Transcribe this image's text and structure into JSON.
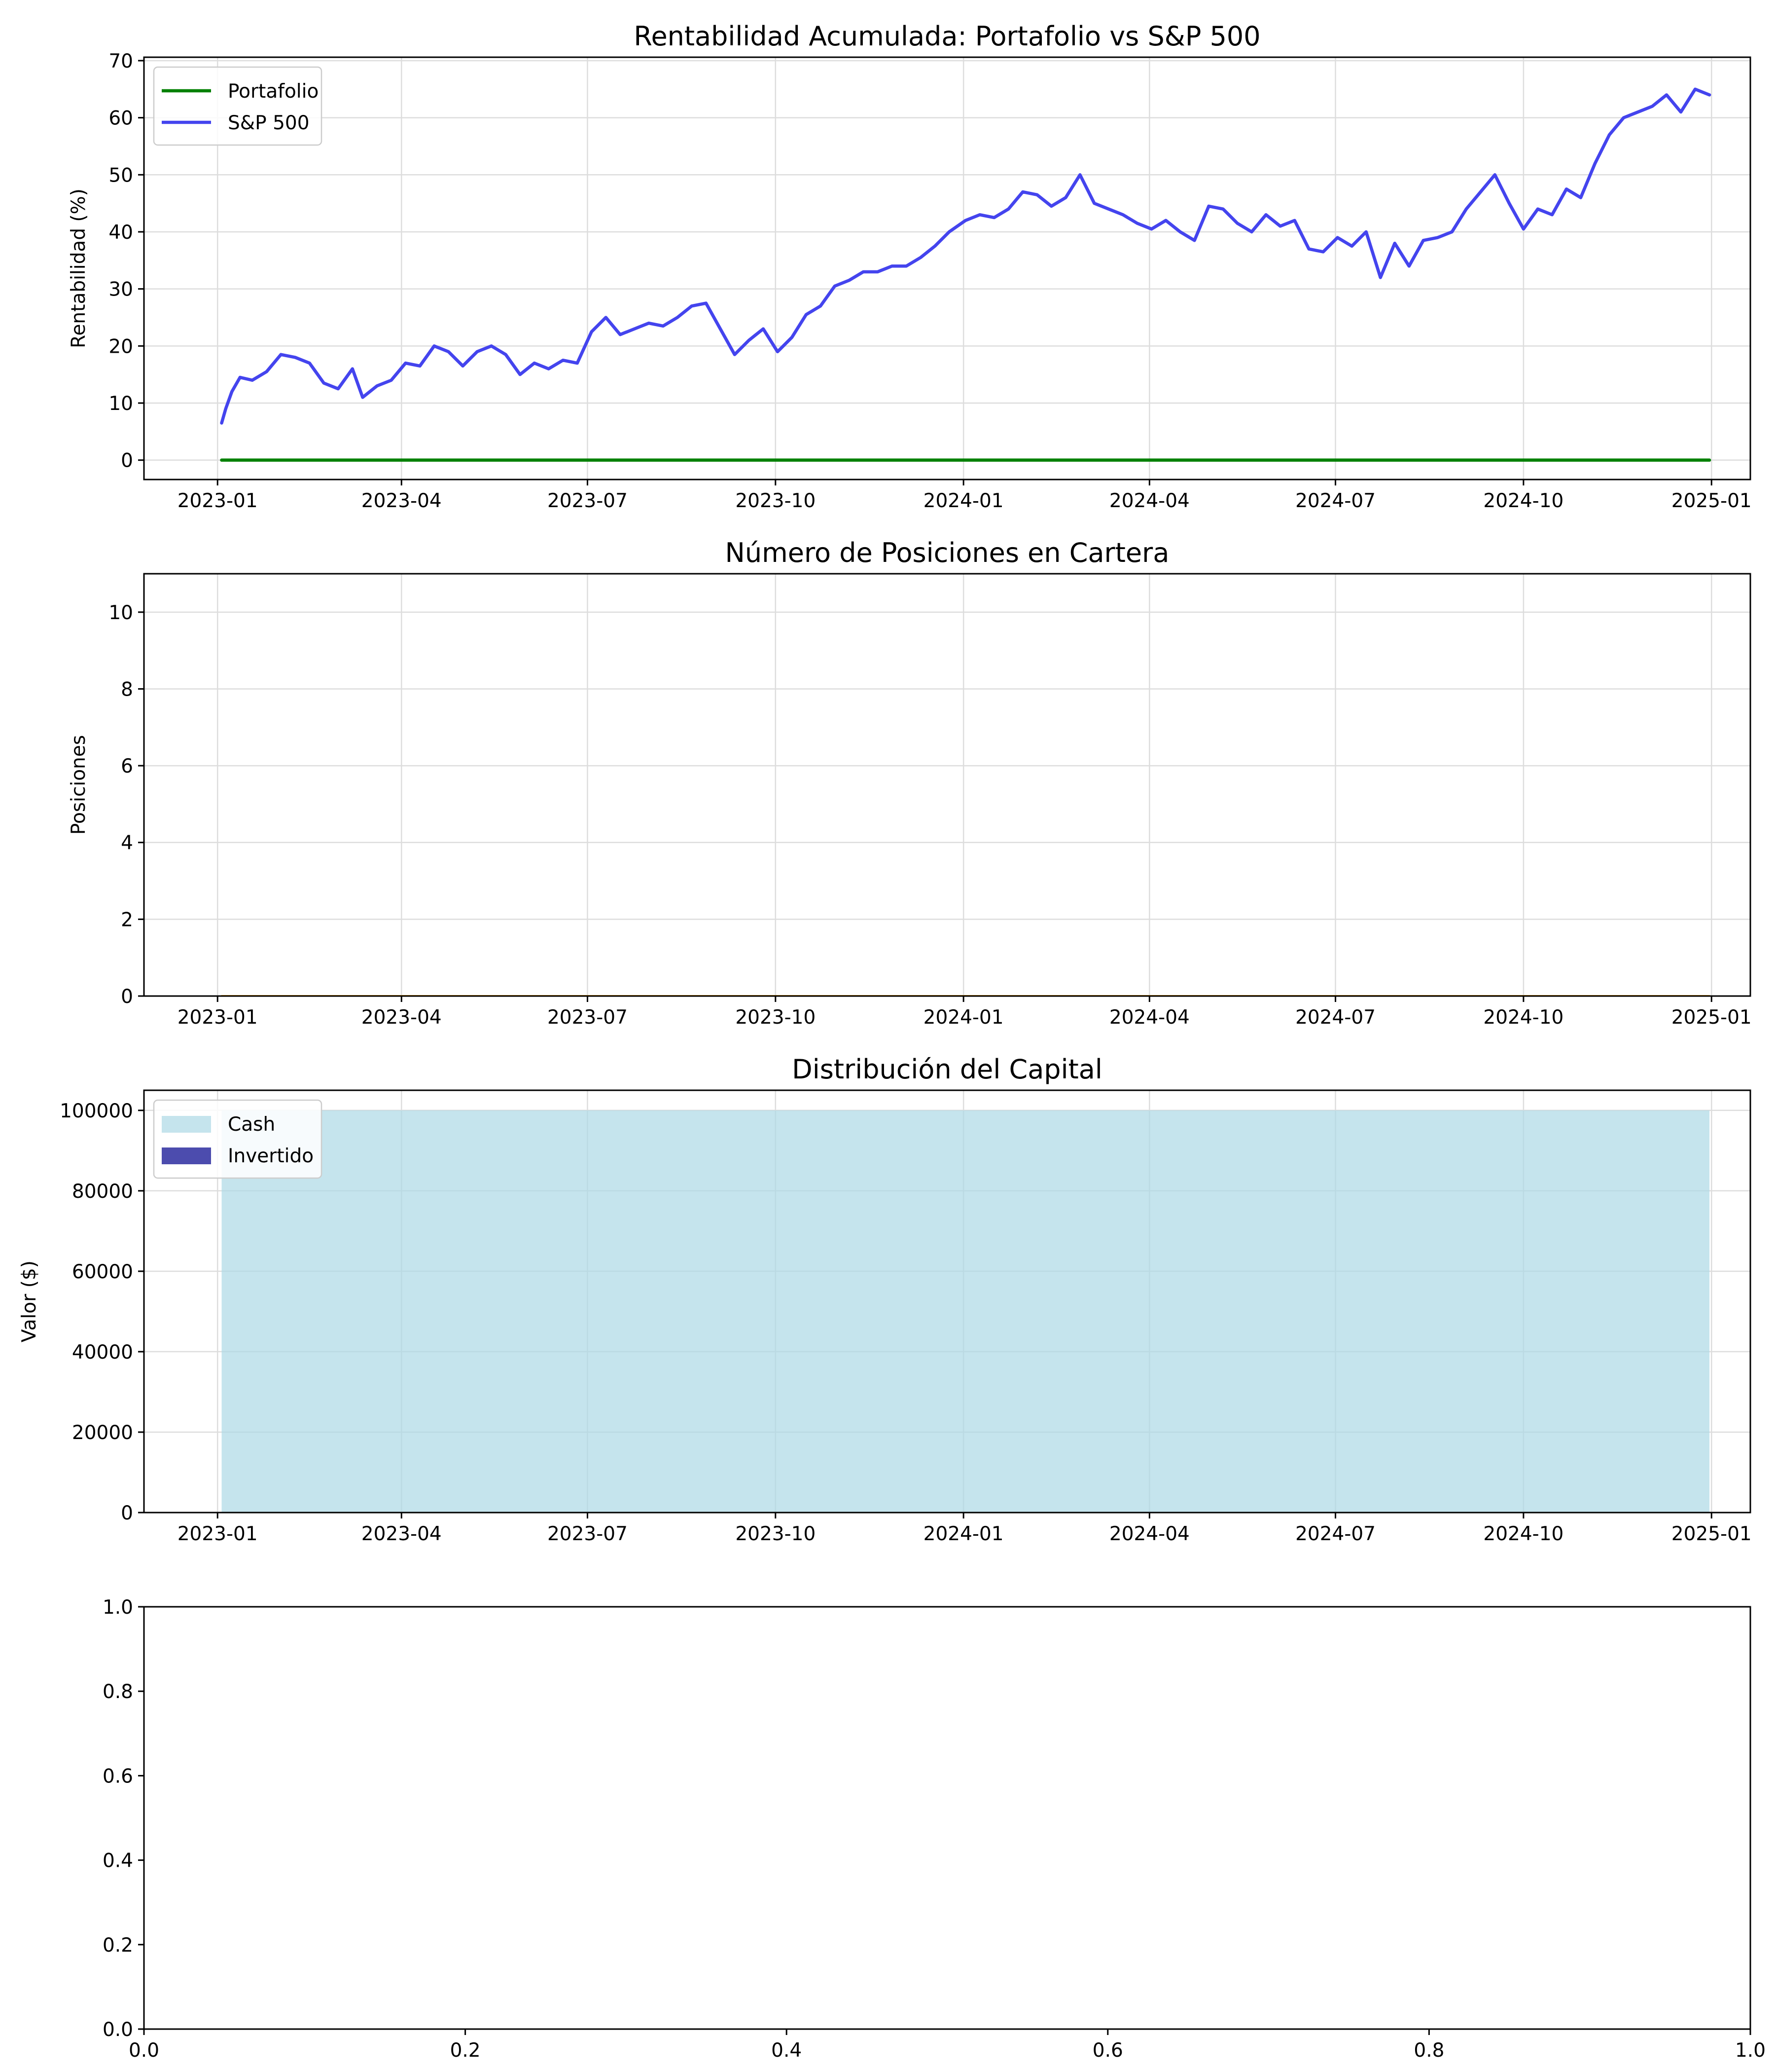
{
  "chart_data": [
    {
      "type": "line",
      "title": "Rentabilidad Acumulada: Portafolio vs S&P 500",
      "xlabel": "",
      "ylabel": "Rentabilidad (%)",
      "xlim": [
        "2022-11-26",
        "2025-01-20"
      ],
      "ylim": [
        -3.4,
        70.6
      ],
      "x_ticks": [
        "2023-01",
        "2023-04",
        "2023-07",
        "2023-10",
        "2024-01",
        "2024-04",
        "2024-07",
        "2024-10",
        "2025-01"
      ],
      "y_ticks": [
        "0",
        "10",
        "20",
        "30",
        "40",
        "50",
        "60",
        "70"
      ],
      "grid": true,
      "legend": "top-left",
      "series": [
        {
          "name": "Portafolio",
          "color": "#008000",
          "x": [
            "2023-01-03",
            "2024-12-31"
          ],
          "values": [
            0,
            0
          ]
        },
        {
          "name": "S&P 500",
          "color": "#4444ee",
          "x": [
            "2023-01-03",
            "2023-01-05",
            "2023-01-08",
            "2023-01-12",
            "2023-01-18",
            "2023-01-25",
            "2023-02-01",
            "2023-02-08",
            "2023-02-15",
            "2023-02-22",
            "2023-03-01",
            "2023-03-08",
            "2023-03-13",
            "2023-03-20",
            "2023-03-27",
            "2023-04-03",
            "2023-04-10",
            "2023-04-17",
            "2023-04-24",
            "2023-05-01",
            "2023-05-08",
            "2023-05-15",
            "2023-05-22",
            "2023-05-29",
            "2023-06-05",
            "2023-06-12",
            "2023-06-19",
            "2023-06-26",
            "2023-07-03",
            "2023-07-10",
            "2023-07-17",
            "2023-07-24",
            "2023-07-31",
            "2023-08-07",
            "2023-08-14",
            "2023-08-21",
            "2023-08-28",
            "2023-09-04",
            "2023-09-11",
            "2023-09-18",
            "2023-09-25",
            "2023-10-02",
            "2023-10-09",
            "2023-10-16",
            "2023-10-23",
            "2023-10-30",
            "2023-11-06",
            "2023-11-13",
            "2023-11-20",
            "2023-11-27",
            "2023-12-04",
            "2023-12-11",
            "2023-12-18",
            "2023-12-25",
            "2024-01-02",
            "2024-01-09",
            "2024-01-16",
            "2024-01-23",
            "2024-01-30",
            "2024-02-06",
            "2024-02-13",
            "2024-02-20",
            "2024-02-27",
            "2024-03-05",
            "2024-03-12",
            "2024-03-19",
            "2024-03-26",
            "2024-04-02",
            "2024-04-09",
            "2024-04-16",
            "2024-04-23",
            "2024-04-30",
            "2024-05-07",
            "2024-05-14",
            "2024-05-21",
            "2024-05-28",
            "2024-06-04",
            "2024-06-11",
            "2024-06-18",
            "2024-06-25",
            "2024-07-02",
            "2024-07-09",
            "2024-07-16",
            "2024-07-23",
            "2024-07-30",
            "2024-08-06",
            "2024-08-13",
            "2024-08-20",
            "2024-08-27",
            "2024-09-03",
            "2024-09-10",
            "2024-09-17",
            "2024-09-24",
            "2024-10-01",
            "2024-10-08",
            "2024-10-15",
            "2024-10-22",
            "2024-10-29",
            "2024-11-05",
            "2024-11-12",
            "2024-11-19",
            "2024-11-26",
            "2024-12-03",
            "2024-12-10",
            "2024-12-17",
            "2024-12-24",
            "2024-12-31"
          ],
          "values": [
            6.5,
            9,
            12,
            14.5,
            14,
            15.5,
            18.5,
            18,
            17,
            13.5,
            12.5,
            16,
            11,
            13,
            14,
            17,
            16.5,
            20,
            19,
            16.5,
            19,
            20,
            18.5,
            15,
            17,
            16,
            17.5,
            17,
            22.5,
            25,
            22,
            23,
            24,
            23.5,
            25,
            27,
            27.5,
            23,
            18.5,
            21,
            23,
            19,
            21.5,
            25.5,
            27,
            30.5,
            31.5,
            33,
            33,
            34,
            34,
            35.5,
            37.5,
            40,
            42,
            43,
            42.5,
            44,
            47,
            46.5,
            44.5,
            46,
            50,
            45,
            44,
            43,
            41.5,
            40.5,
            42,
            40,
            38.5,
            44.5,
            44,
            41.5,
            40,
            43,
            41,
            42,
            37,
            36.5,
            39,
            37.5,
            40,
            32,
            38,
            34,
            38.5,
            39,
            40,
            44,
            47,
            50,
            45,
            40.5,
            44,
            43,
            47.5,
            46,
            52,
            57,
            60,
            61,
            62,
            64,
            61,
            65,
            64
          ]
        }
      ]
    },
    {
      "type": "line",
      "title": "Número de Posiciones en Cartera",
      "xlabel": "",
      "ylabel": "Posiciones",
      "xlim": [
        "2022-11-26",
        "2025-01-20"
      ],
      "ylim": [
        0,
        11
      ],
      "x_ticks": [
        "2023-01",
        "2023-04",
        "2023-07",
        "2023-10",
        "2024-01",
        "2024-04",
        "2024-07",
        "2024-10",
        "2025-01"
      ],
      "y_ticks": [
        "0",
        "2",
        "4",
        "6",
        "8",
        "10"
      ],
      "grid": true,
      "series": [
        {
          "color": "#ffa500",
          "x": [
            "2023-01-03",
            "2024-12-31"
          ],
          "values": [
            0,
            0
          ]
        }
      ]
    },
    {
      "type": "area",
      "title": "Distribución del Capital",
      "xlabel": "",
      "ylabel": "Valor ($)",
      "xlim": [
        "2022-11-26",
        "2025-01-20"
      ],
      "ylim": [
        0,
        105000
      ],
      "x_ticks": [
        "2023-01",
        "2023-04",
        "2023-07",
        "2023-10",
        "2024-01",
        "2024-04",
        "2024-07",
        "2024-10",
        "2025-01"
      ],
      "y_ticks": [
        "0",
        "20000",
        "40000",
        "60000",
        "80000",
        "100000"
      ],
      "grid": true,
      "legend": "top-left",
      "series": [
        {
          "name": "Cash",
          "color": "#add8e6",
          "x": [
            "2023-01-03",
            "2024-12-31"
          ],
          "values": [
            100000,
            100000
          ]
        },
        {
          "name": "Invertido",
          "color": "#00008b",
          "x": [
            "2023-01-03",
            "2024-12-31"
          ],
          "values": [
            0,
            0
          ]
        }
      ]
    },
    {
      "type": "line",
      "title": "",
      "xlim": [
        0,
        1
      ],
      "ylim": [
        0,
        1
      ],
      "x_ticks": [
        "0.0",
        "0.2",
        "0.4",
        "0.6",
        "0.8",
        "1.0"
      ],
      "y_ticks": [
        "0.0",
        "0.2",
        "0.4",
        "0.6",
        "0.8",
        "1.0"
      ],
      "grid": false,
      "series": []
    }
  ]
}
